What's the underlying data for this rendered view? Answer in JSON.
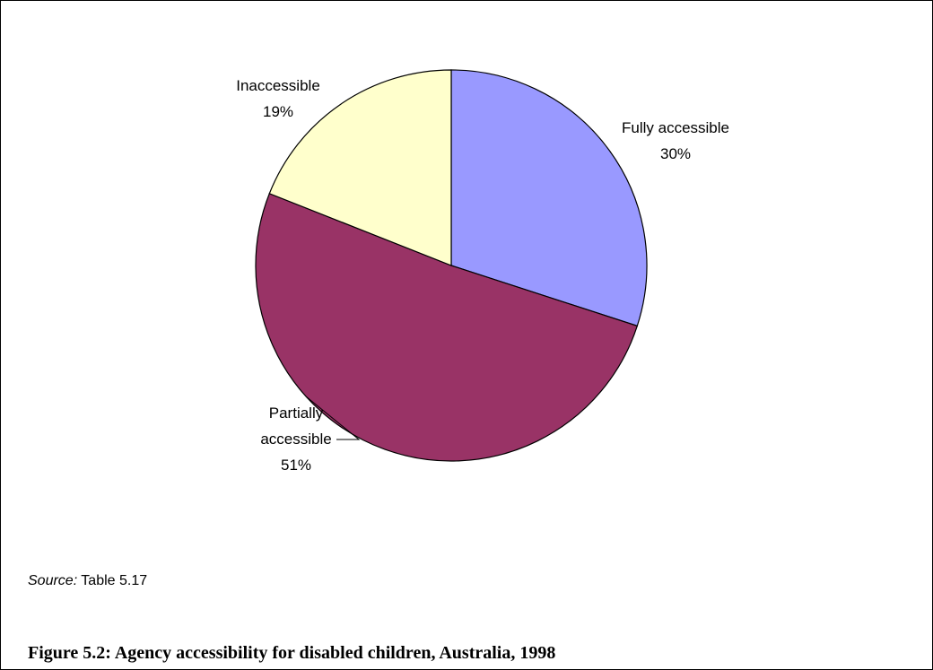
{
  "chart_data": {
    "type": "pie",
    "slices": [
      {
        "label": [
          "Fully accessible",
          "30%"
        ],
        "value": 30,
        "color": "#9999ff"
      },
      {
        "label": [
          "Partially",
          "accessible",
          "51%"
        ],
        "value": 51,
        "color": "#993366"
      },
      {
        "label": [
          "Inaccessible",
          "19%"
        ],
        "value": 19,
        "color": "#ffffcc"
      }
    ],
    "start": "top",
    "direction": "clockwise",
    "slice_border": "#000000"
  },
  "source": {
    "prefix": "Source:",
    "text": "Table 5.17"
  },
  "caption": "Figure 5.2: Agency accessibility for disabled children, Australia, 1998"
}
